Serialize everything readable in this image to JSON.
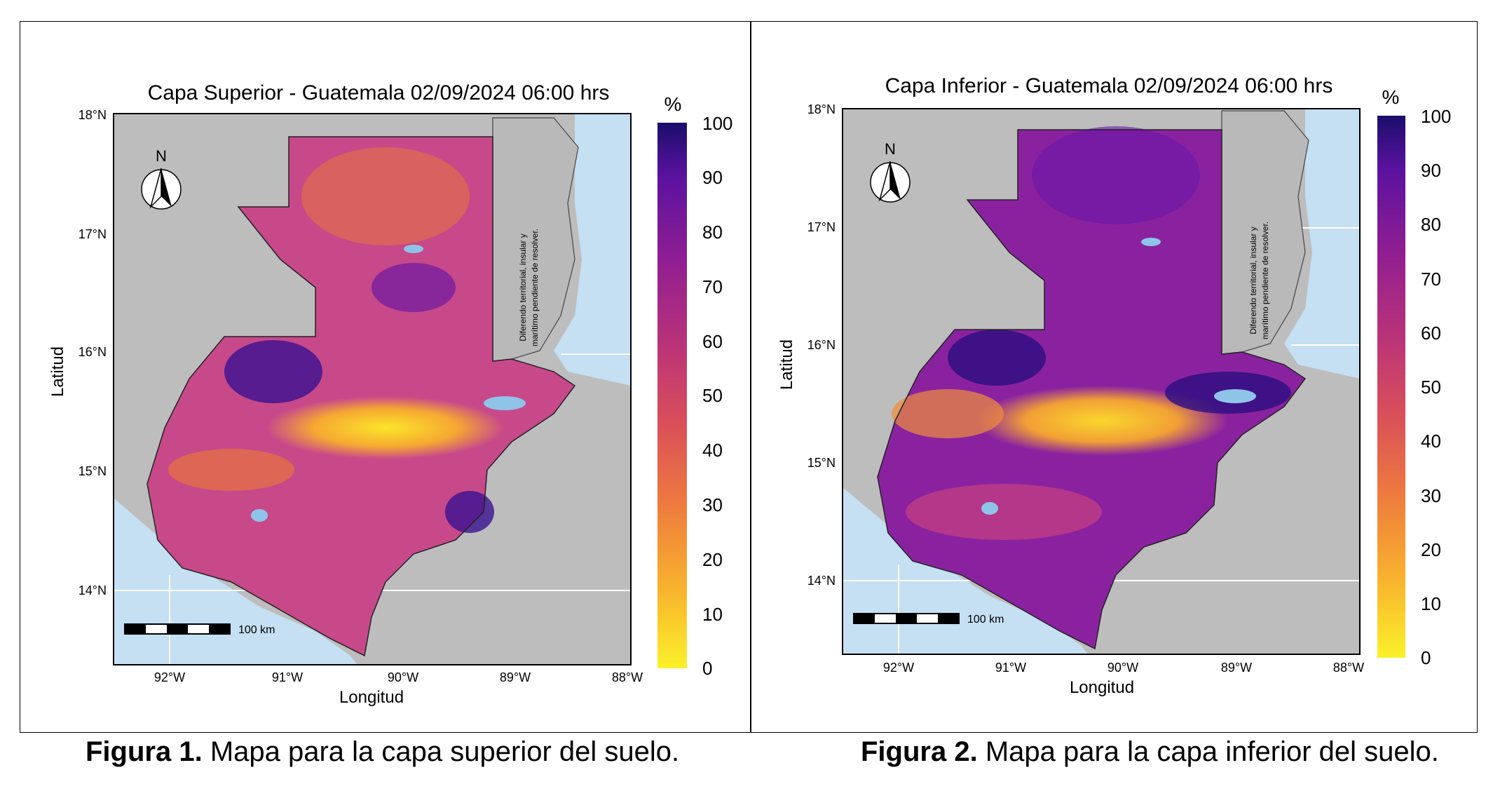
{
  "figures": [
    {
      "title": "Capa Superior - Guatemala 02/09/2024 06:00 hrs",
      "xlabel": "Longitud",
      "ylabel": "Latitud",
      "lon_ticks": [
        "92°W",
        "91°W",
        "90°W",
        "89°W",
        "88°W"
      ],
      "lat_ticks": [
        "18°N",
        "17°N",
        "16°N",
        "15°N",
        "14°N"
      ],
      "legend_unit": "%",
      "legend_ticks": [
        "100",
        "90",
        "80",
        "70",
        "60",
        "50",
        "40",
        "30",
        "20",
        "10",
        "0"
      ],
      "scale_label": "100 km",
      "north_label": "N",
      "dispute_note_line1": "Diferendo territorial, insular y",
      "dispute_note_line2": "marítimo pendiente de resolver.",
      "caption_bold": "Figura 1.",
      "caption_text": " Mapa para la capa superior del suelo."
    },
    {
      "title": "Capa Inferior - Guatemala 02/09/2024 06:00 hrs",
      "xlabel": "Longitud",
      "ylabel": "Latitud",
      "lon_ticks": [
        "92°W",
        "91°W",
        "90°W",
        "89°W",
        "88°W"
      ],
      "lat_ticks": [
        "18°N",
        "17°N",
        "16°N",
        "15°N",
        "14°N"
      ],
      "legend_unit": "%",
      "legend_ticks": [
        "100",
        "90",
        "80",
        "70",
        "60",
        "50",
        "40",
        "30",
        "20",
        "10",
        "0"
      ],
      "scale_label": "100 km",
      "north_label": "N",
      "dispute_note_line1": "Diferendo territorial, insular y",
      "dispute_note_line2": "marítimo pendiente de resolver.",
      "caption_bold": "Figura 2.",
      "caption_text": " Mapa para la capa inferior del suelo."
    }
  ],
  "colors": {
    "sea": "#c5dff3",
    "land_outside": "#bdbdbd",
    "colormap": [
      "#fbf12a",
      "#f8b12e",
      "#ee7b3e",
      "#d94f5a",
      "#b8327a",
      "#8f1e92",
      "#5b12a0",
      "#1b0e6b"
    ]
  },
  "colorscale_range": [
    0,
    100
  ],
  "colorscale_units": "%"
}
